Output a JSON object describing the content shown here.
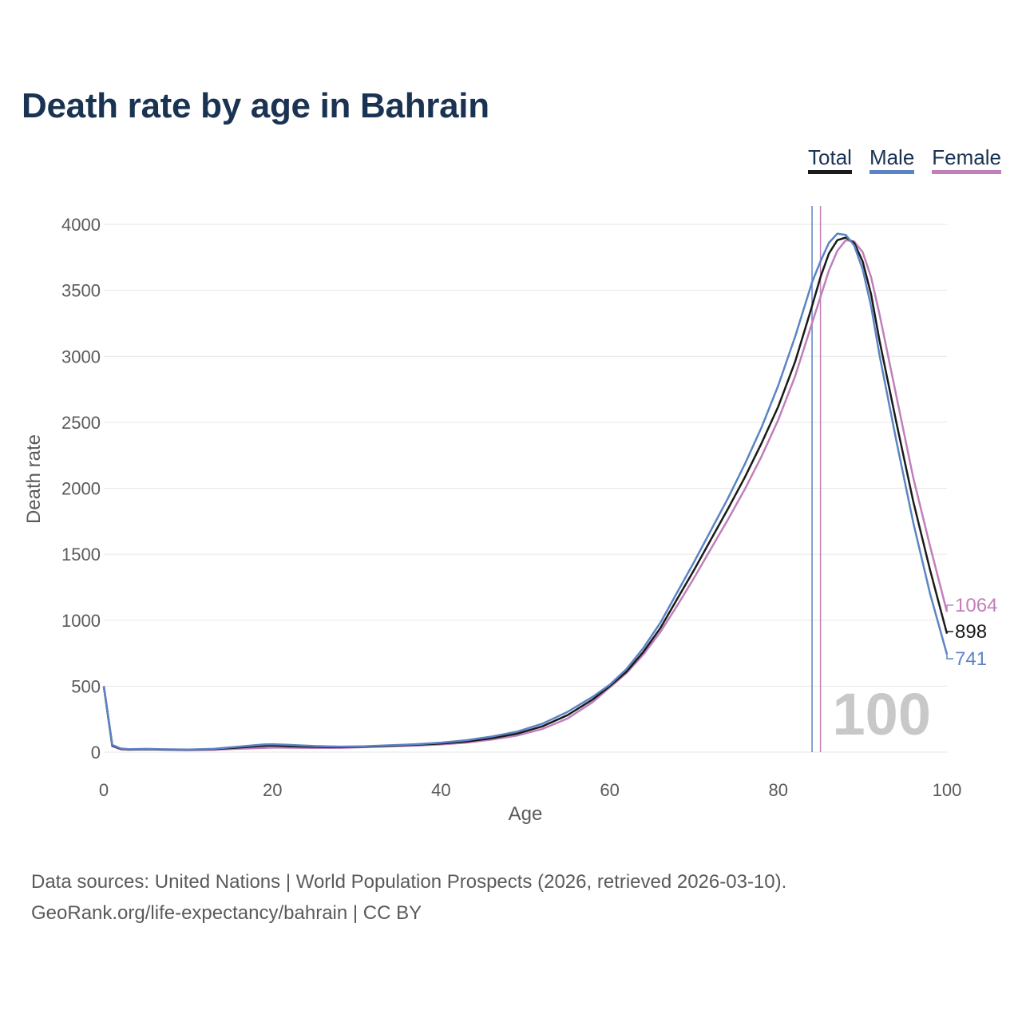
{
  "title": "Death rate by age in Bahrain",
  "legend": {
    "total": "Total",
    "male": "Male",
    "female": "Female"
  },
  "colors": {
    "title": "#1b3352",
    "total": "#1a1a1a",
    "male": "#5b84c4",
    "female": "#c07fba",
    "grid": "#e6e6e6",
    "marker": "#c8c8c8"
  },
  "chart_data": {
    "type": "line",
    "title": "Death rate by age in Bahrain",
    "xlabel": "Age",
    "ylabel": "Death rate",
    "xlim": [
      0,
      100
    ],
    "ylim": [
      0,
      4000
    ],
    "xticks": [
      0,
      20,
      40,
      60,
      80,
      100
    ],
    "yticks": [
      0,
      500,
      1000,
      1500,
      2000,
      2500,
      3000,
      3500,
      4000
    ],
    "grid": true,
    "legend_position": "top-right",
    "age_marker": "100",
    "reference_lines": [
      {
        "series": "Male",
        "x": 84
      },
      {
        "series": "Female",
        "x": 85
      }
    ],
    "series": [
      {
        "name": "Total",
        "key": "total",
        "end_label": "898",
        "points": [
          [
            0,
            500
          ],
          [
            1,
            50
          ],
          [
            2,
            25
          ],
          [
            3,
            20
          ],
          [
            5,
            22
          ],
          [
            7,
            20
          ],
          [
            10,
            18
          ],
          [
            13,
            22
          ],
          [
            16,
            35
          ],
          [
            19,
            48
          ],
          [
            20,
            50
          ],
          [
            22,
            45
          ],
          [
            25,
            40
          ],
          [
            28,
            38
          ],
          [
            31,
            42
          ],
          [
            34,
            48
          ],
          [
            37,
            55
          ],
          [
            40,
            65
          ],
          [
            43,
            80
          ],
          [
            46,
            105
          ],
          [
            49,
            140
          ],
          [
            52,
            195
          ],
          [
            55,
            280
          ],
          [
            58,
            400
          ],
          [
            60,
            500
          ],
          [
            62,
            610
          ],
          [
            64,
            760
          ],
          [
            66,
            940
          ],
          [
            68,
            1160
          ],
          [
            70,
            1380
          ],
          [
            72,
            1610
          ],
          [
            74,
            1840
          ],
          [
            76,
            2080
          ],
          [
            78,
            2340
          ],
          [
            80,
            2620
          ],
          [
            82,
            2960
          ],
          [
            84,
            3380
          ],
          [
            85,
            3600
          ],
          [
            86,
            3780
          ],
          [
            87,
            3880
          ],
          [
            88,
            3900
          ],
          [
            89,
            3860
          ],
          [
            90,
            3720
          ],
          [
            91,
            3470
          ],
          [
            92,
            3120
          ],
          [
            94,
            2500
          ],
          [
            96,
            1900
          ],
          [
            98,
            1380
          ],
          [
            100,
            898
          ]
        ]
      },
      {
        "name": "Male",
        "key": "male",
        "end_label": "741",
        "points": [
          [
            0,
            500
          ],
          [
            1,
            55
          ],
          [
            2,
            28
          ],
          [
            3,
            22
          ],
          [
            5,
            25
          ],
          [
            7,
            22
          ],
          [
            10,
            20
          ],
          [
            13,
            25
          ],
          [
            16,
            42
          ],
          [
            19,
            58
          ],
          [
            20,
            60
          ],
          [
            22,
            55
          ],
          [
            25,
            46
          ],
          [
            28,
            42
          ],
          [
            31,
            45
          ],
          [
            34,
            52
          ],
          [
            37,
            60
          ],
          [
            40,
            72
          ],
          [
            43,
            90
          ],
          [
            46,
            118
          ],
          [
            49,
            155
          ],
          [
            52,
            215
          ],
          [
            55,
            305
          ],
          [
            58,
            420
          ],
          [
            60,
            510
          ],
          [
            62,
            630
          ],
          [
            64,
            790
          ],
          [
            66,
            980
          ],
          [
            68,
            1210
          ],
          [
            70,
            1440
          ],
          [
            72,
            1680
          ],
          [
            74,
            1920
          ],
          [
            76,
            2180
          ],
          [
            78,
            2460
          ],
          [
            80,
            2780
          ],
          [
            82,
            3150
          ],
          [
            84,
            3560
          ],
          [
            85,
            3720
          ],
          [
            86,
            3860
          ],
          [
            87,
            3930
          ],
          [
            88,
            3920
          ],
          [
            89,
            3840
          ],
          [
            90,
            3660
          ],
          [
            91,
            3380
          ],
          [
            92,
            3010
          ],
          [
            94,
            2360
          ],
          [
            96,
            1740
          ],
          [
            98,
            1200
          ],
          [
            100,
            741
          ]
        ]
      },
      {
        "name": "Female",
        "key": "female",
        "end_label": "1064",
        "points": [
          [
            0,
            500
          ],
          [
            1,
            45
          ],
          [
            2,
            22
          ],
          [
            3,
            18
          ],
          [
            5,
            22
          ],
          [
            7,
            18
          ],
          [
            10,
            15
          ],
          [
            13,
            18
          ],
          [
            16,
            26
          ],
          [
            19,
            32
          ],
          [
            20,
            35
          ],
          [
            22,
            33
          ],
          [
            25,
            32
          ],
          [
            28,
            32
          ],
          [
            31,
            38
          ],
          [
            34,
            45
          ],
          [
            37,
            50
          ],
          [
            40,
            58
          ],
          [
            43,
            72
          ],
          [
            46,
            95
          ],
          [
            49,
            125
          ],
          [
            52,
            175
          ],
          [
            55,
            255
          ],
          [
            58,
            380
          ],
          [
            60,
            490
          ],
          [
            62,
            600
          ],
          [
            64,
            740
          ],
          [
            66,
            910
          ],
          [
            68,
            1110
          ],
          [
            70,
            1320
          ],
          [
            72,
            1540
          ],
          [
            74,
            1760
          ],
          [
            76,
            1990
          ],
          [
            78,
            2240
          ],
          [
            80,
            2520
          ],
          [
            82,
            2850
          ],
          [
            84,
            3250
          ],
          [
            85,
            3450
          ],
          [
            86,
            3650
          ],
          [
            87,
            3800
          ],
          [
            88,
            3880
          ],
          [
            89,
            3870
          ],
          [
            90,
            3790
          ],
          [
            91,
            3600
          ],
          [
            92,
            3320
          ],
          [
            94,
            2700
          ],
          [
            96,
            2080
          ],
          [
            98,
            1560
          ],
          [
            100,
            1064
          ]
        ]
      }
    ]
  },
  "footer": {
    "line1": "Data sources: United Nations | World Population Prospects (2026, retrieved 2026-03-10).",
    "line2": "GeoRank.org/life-expectancy/bahrain | CC BY"
  }
}
